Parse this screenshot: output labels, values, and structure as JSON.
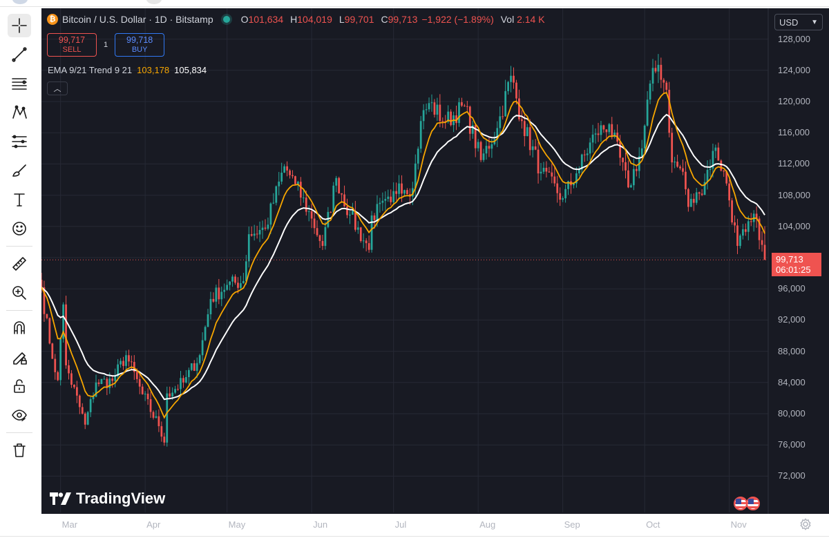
{
  "legend": {
    "title": "Bitcoin / U.S. Dollar · 1D · Bitstamp",
    "open_label": "O",
    "open": "101,634",
    "high_label": "H",
    "high": "104,019",
    "low_label": "L",
    "low": "99,701",
    "close_label": "C",
    "close": "99,713",
    "change": "−1,922 (−1.89%)",
    "vol_label": "Vol",
    "vol": "2.14 K"
  },
  "trade": {
    "sell_price": "99,717",
    "sell_label": "SELL",
    "spread": "1",
    "buy_price": "99,718",
    "buy_label": "BUY"
  },
  "indicator": {
    "name": "EMA 9/21 Trend 9 21",
    "fast_value": "103,178",
    "slow_value": "105,834"
  },
  "price_axis": {
    "currency": "USD",
    "ticks": [
      "128,000",
      "124,000",
      "120,000",
      "116,000",
      "112,000",
      "108,000",
      "104,000",
      "96,000",
      "92,000",
      "88,000",
      "84,000",
      "80,000",
      "76,000",
      "72,000"
    ],
    "last_price": "99,713",
    "countdown": "06:01:25"
  },
  "time_axis": {
    "months": [
      "Mar",
      "Apr",
      "May",
      "Jun",
      "Jul",
      "Aug",
      "Sep",
      "Oct",
      "Nov"
    ]
  },
  "watermark": "TradingView",
  "colors": {
    "up": "#26a69a",
    "down": "#ef5350",
    "ema_fast": "#f7a600",
    "ema_slow": "#ffffff",
    "background": "#181a23"
  },
  "icons": {
    "toolbar": [
      "crosshair-icon",
      "trend-line-icon",
      "horizontal-lines-icon",
      "pattern-icon",
      "fib-icon",
      "brush-icon",
      "text-icon",
      "emoji-icon",
      "ruler-icon",
      "zoom-in-icon",
      "magnet-icon",
      "lock-drawing-icon",
      "unlock-icon",
      "eye-icon",
      "trash-icon"
    ]
  },
  "chart_data": {
    "type": "candlestick",
    "title": "Bitcoin / U.S. Dollar · 1D · Bitstamp",
    "ylim": [
      70000,
      130000
    ],
    "yscale": "linear",
    "grid": true,
    "x_range": [
      "2025-02-22",
      "2025-11-14"
    ],
    "month_ticks": [
      "Mar",
      "Apr",
      "May",
      "Jun",
      "Jul",
      "Aug",
      "Sep",
      "Oct",
      "Nov"
    ],
    "close_anchors": [
      [
        "2025-02-22",
        96200
      ],
      [
        "2025-02-25",
        89000
      ],
      [
        "2025-02-28",
        84300
      ],
      [
        "2025-03-02",
        94000
      ],
      [
        "2025-03-03",
        86200
      ],
      [
        "2025-03-10",
        78600
      ],
      [
        "2025-03-14",
        84000
      ],
      [
        "2025-03-20",
        84200
      ],
      [
        "2025-03-25",
        87500
      ],
      [
        "2025-03-31",
        82500
      ],
      [
        "2025-04-06",
        78400
      ],
      [
        "2025-04-08",
        76300
      ],
      [
        "2025-04-09",
        82600
      ],
      [
        "2025-04-15",
        84000
      ],
      [
        "2025-04-21",
        87500
      ],
      [
        "2025-04-25",
        94700
      ],
      [
        "2025-05-01",
        96500
      ],
      [
        "2025-05-07",
        97000
      ],
      [
        "2025-05-09",
        103000
      ],
      [
        "2025-05-15",
        103700
      ],
      [
        "2025-05-22",
        111700
      ],
      [
        "2025-05-26",
        109400
      ],
      [
        "2025-06-01",
        105000
      ],
      [
        "2025-06-05",
        101500
      ],
      [
        "2025-06-10",
        110200
      ],
      [
        "2025-06-15",
        105500
      ],
      [
        "2025-06-22",
        101000
      ],
      [
        "2025-06-23",
        105400
      ],
      [
        "2025-06-30",
        107100
      ],
      [
        "2025-07-03",
        109500
      ],
      [
        "2025-07-08",
        108900
      ],
      [
        "2025-07-11",
        117500
      ],
      [
        "2025-07-14",
        119800
      ],
      [
        "2025-07-20",
        117400
      ],
      [
        "2025-07-27",
        119400
      ],
      [
        "2025-08-02",
        112500
      ],
      [
        "2025-08-08",
        116600
      ],
      [
        "2025-08-13",
        123300
      ],
      [
        "2025-08-17",
        117500
      ],
      [
        "2025-08-24",
        111000
      ],
      [
        "2025-09-01",
        107600
      ],
      [
        "2025-09-06",
        110800
      ],
      [
        "2025-09-13",
        115900
      ],
      [
        "2025-09-18",
        117100
      ],
      [
        "2025-09-25",
        109000
      ],
      [
        "2025-09-30",
        114000
      ],
      [
        "2025-10-03",
        122300
      ],
      [
        "2025-10-06",
        124700
      ],
      [
        "2025-10-09",
        121500
      ],
      [
        "2025-10-11",
        112200
      ],
      [
        "2025-10-15",
        111000
      ],
      [
        "2025-10-17",
        106500
      ],
      [
        "2025-10-21",
        108200
      ],
      [
        "2025-10-27",
        114100
      ],
      [
        "2025-10-31",
        109500
      ],
      [
        "2025-11-04",
        101500
      ],
      [
        "2025-11-07",
        103300
      ],
      [
        "2025-11-11",
        105000
      ],
      [
        "2025-11-13",
        101634
      ],
      [
        "2025-11-14",
        99713
      ]
    ],
    "series": [
      {
        "name": "EMA 9",
        "color": "#f7a600",
        "last_value": 103178
      },
      {
        "name": "EMA 21",
        "color": "#ffffff",
        "last_value": 105834
      }
    ],
    "last_candle": {
      "open": 101634,
      "high": 104019,
      "low": 99701,
      "close": 99713
    }
  }
}
